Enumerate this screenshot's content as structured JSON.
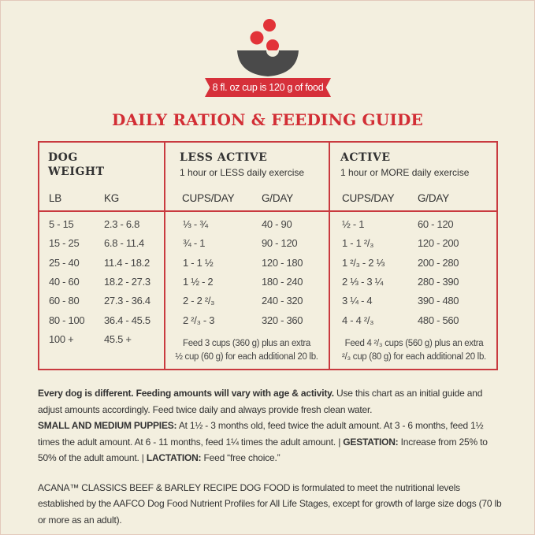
{
  "banner": "8 fl. oz cup is 120 g of food",
  "title": "DAILY RATION & FEEDING GUIDE",
  "colors": {
    "red": "#d6303a",
    "bowl": "#4a4a4a",
    "bg": "#f3efdf"
  },
  "table": {
    "dog_weight": "DOG",
    "dog_weight2": "WEIGHT",
    "less": {
      "title": "LESS ACTIVE",
      "sub": "1 hour or LESS daily exercise",
      "note1": "Feed 3 cups (360 g) plus an extra",
      "note2": "½ cup (60 g) for each additional 20 lb."
    },
    "active": {
      "title": "ACTIVE",
      "sub": "1 hour or MORE daily exercise",
      "note1": "Feed 4 ²/₃ cups (560 g) plus an extra",
      "note2": "²/₃ cup (80 g) for each additional 20 lb."
    },
    "cols": [
      "LB",
      "KG",
      "CUPS/DAY",
      "G/DAY",
      "CUPS/DAY",
      "G/DAY"
    ],
    "rows": [
      [
        "5 - 15",
        "2.3 - 6.8",
        "⅓ - ¾",
        "40 - 90",
        "½ - 1",
        "60 - 120"
      ],
      [
        "15 - 25",
        "6.8 - 11.4",
        "¾ - 1",
        "90 - 120",
        "1 - 1 ²/₃",
        "120 - 200"
      ],
      [
        "25 - 40",
        "11.4 - 18.2",
        "1 - 1 ½",
        "120 - 180",
        "1 ²/₃ - 2 ⅓",
        "200 - 280"
      ],
      [
        "40 - 60",
        "18.2 - 27.3",
        "1 ½ - 2",
        "180 - 240",
        "2 ⅓ - 3 ¼",
        "280 - 390"
      ],
      [
        "60 - 80",
        "27.3 - 36.4",
        "2 - 2 ²/₃",
        "240 - 320",
        "3 ¼ - 4",
        "390 - 480"
      ],
      [
        "80 - 100",
        "36.4 - 45.5",
        "2 ²/₃ - 3",
        "320 - 360",
        "4 - 4 ²/₃",
        "480 - 560"
      ],
      [
        "100 +",
        "45.5 +"
      ]
    ]
  },
  "body": {
    "p1_bold": "Every dog is different. Feeding amounts will vary with age & activity.",
    "p1": " Use this chart as an initial guide and adjust amounts accordingly. Feed twice daily and always provide fresh clean water.",
    "p2_bold": "SMALL AND MEDIUM PUPPIES:",
    "p2": " At 1½ - 3 months old, feed twice the adult amount. At 3 - 6 months, feed 1½ times the adult amount. At 6 - 11 months, feed 1¼ times the adult amount. | ",
    "p2_bold2": "GESTATION:",
    "p2b": " Increase from 25% to 50% of the adult amount. | ",
    "p2_bold3": "LACTATION:",
    "p2c": " Feed “free choice.”",
    "footer": "ACANA™ CLASSICS BEEF & BARLEY RECIPE DOG FOOD is formulated to meet the nutritional levels established by the AAFCO Dog Food Nutrient Profiles for All Life Stages, except for growth of large size dogs (70 lb or more as an adult)."
  }
}
